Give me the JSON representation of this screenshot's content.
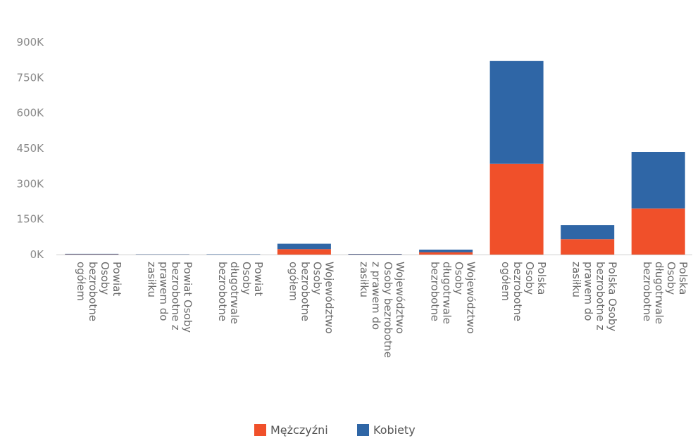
{
  "chart_data": {
    "type": "bar",
    "stacked": true,
    "categories": [
      "Powiat Osoby bezrobotne ogółem",
      "Powiat Osoby bezrobotne z prawem do zasiłku",
      "Powiat Osoby długotrwale bezrobotne",
      "Województwo Osoby bezrobotne ogółem",
      "Województwo Osoby bezrobotne z prawem do zasiłku",
      "Województwo Osoby długotrwale bezrobotne",
      "Polska Osoby bezrobotne ogółem",
      "Polska Osoby bezrobotne z prawem do zasiłku",
      "Polska Osoby długotrwale bezrobotne"
    ],
    "category_lines": [
      [
        "Powiat",
        "Osoby",
        "bezrobotne",
        "ogółem"
      ],
      [
        "Powiat Osoby",
        "bezrobotne z",
        "prawem do",
        "zasiłku"
      ],
      [
        "Powiat",
        "Osoby",
        "długotrwale",
        "bezrobotne"
      ],
      [
        "Województwo",
        "Osoby",
        "bezrobotne",
        "ogółem"
      ],
      [
        "Województwo",
        "Osoby bezrobotne",
        "z prawem do",
        "zasiłku"
      ],
      [
        "Województwo",
        "Osoby",
        "długotrwale",
        "bezrobotne"
      ],
      [
        "Polska",
        "Osoby",
        "bezrobotne",
        "ogółem"
      ],
      [
        "Polska Osoby",
        "bezrobotne z",
        "prawem do",
        "zasiłku"
      ],
      [
        "Polska",
        "Osoby",
        "długotrwale",
        "bezrobotne"
      ]
    ],
    "series": [
      {
        "name": "Mężczyźni",
        "color": "#f0502a",
        "values": [
          1500,
          500,
          700,
          23000,
          1500,
          10000,
          385000,
          65000,
          195000
        ]
      },
      {
        "name": "Kobiety",
        "color": "#2f66a6",
        "values": [
          1800,
          600,
          900,
          23000,
          1500,
          11000,
          435000,
          60000,
          240000
        ]
      }
    ],
    "y_ticks": [
      "0K",
      "150K",
      "300K",
      "450K",
      "600K",
      "750K",
      "900K"
    ],
    "ylim": [
      0,
      900000
    ],
    "legend_position": "bottom",
    "grid": false
  }
}
